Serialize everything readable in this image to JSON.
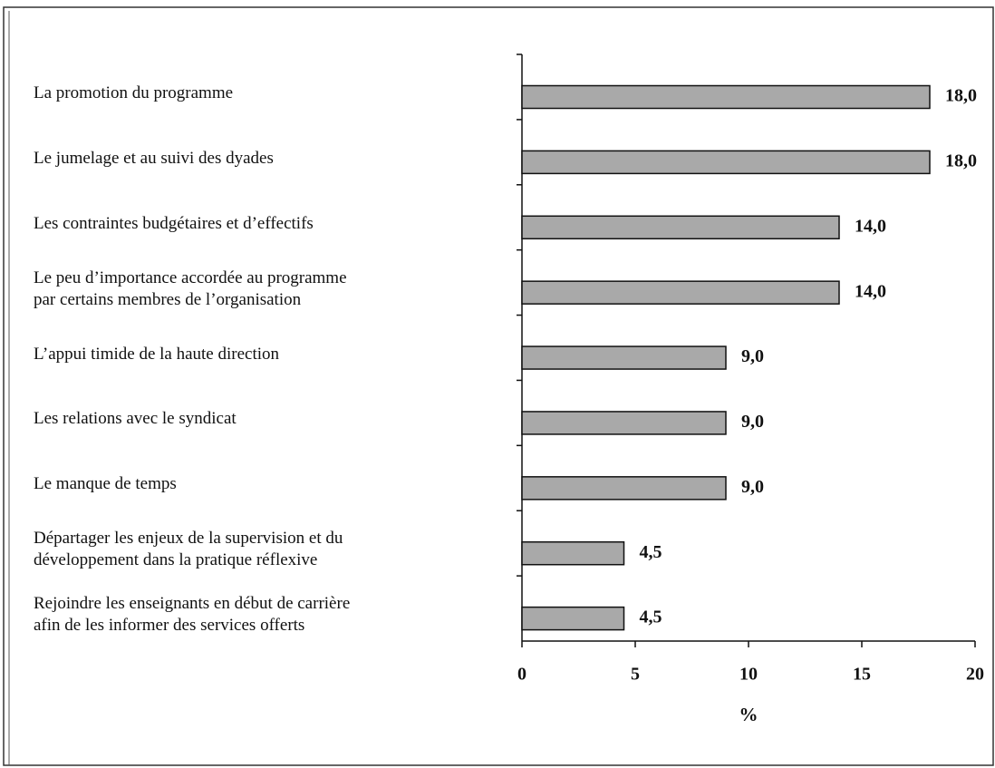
{
  "chart_data": {
    "type": "barh",
    "categories": [
      "La promotion du programme",
      "Le jumelage et au suivi des dyades",
      "Les contraintes budgétaires et d’effectifs",
      "Le peu d’importance accordée au programme\npar certains membres de l’organisation",
      "L’appui timide de la haute direction",
      "Les relations avec le syndicat",
      "Le manque de temps",
      "Départager les enjeux de la supervision et du\ndéveloppement dans la pratique réflexive",
      "Rejoindre les enseignants en début de carrière\nafin de les informer des services offerts"
    ],
    "values": [
      18.0,
      18.0,
      14.0,
      14.0,
      9.0,
      9.0,
      9.0,
      4.5,
      4.5
    ],
    "value_labels": [
      "18,0",
      "18,0",
      "14,0",
      "14,0",
      "9,0",
      "9,0",
      "9,0",
      "4,5",
      "4,5"
    ],
    "color": "#a9a9a9",
    "xlabel": "%",
    "xlim": [
      0,
      20
    ],
    "xticks": [
      0,
      5,
      10,
      15,
      20
    ]
  }
}
